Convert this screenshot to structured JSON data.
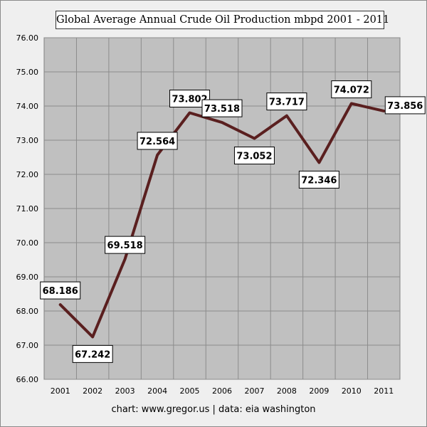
{
  "chart_data": {
    "type": "line",
    "title": "Global Average Annual Crude Oil Production mbpd 2001 - 2011",
    "categories": [
      "2001",
      "2002",
      "2003",
      "2004",
      "2005",
      "2006",
      "2007",
      "2008",
      "2009",
      "2010",
      "2011"
    ],
    "values": [
      68.186,
      67.242,
      69.518,
      72.564,
      73.802,
      73.518,
      73.052,
      73.717,
      72.346,
      74.072,
      73.856
    ],
    "data_labels": [
      "68.186",
      "67.242",
      "69.518",
      "72.564",
      "73.802",
      "73.518",
      "73.052",
      "73.717",
      "72.346",
      "74.072",
      "73.856"
    ],
    "ylim": [
      66,
      76
    ],
    "y_ticks": [
      "66.00",
      "67.00",
      "68.00",
      "69.00",
      "70.00",
      "71.00",
      "72.00",
      "73.00",
      "74.00",
      "75.00",
      "76.00"
    ],
    "grid": true,
    "line_color": "#5a1f1f",
    "plot_background": "#c0c0c0"
  },
  "footer": "chart:  www.gregor.us   |   data: eia washington"
}
